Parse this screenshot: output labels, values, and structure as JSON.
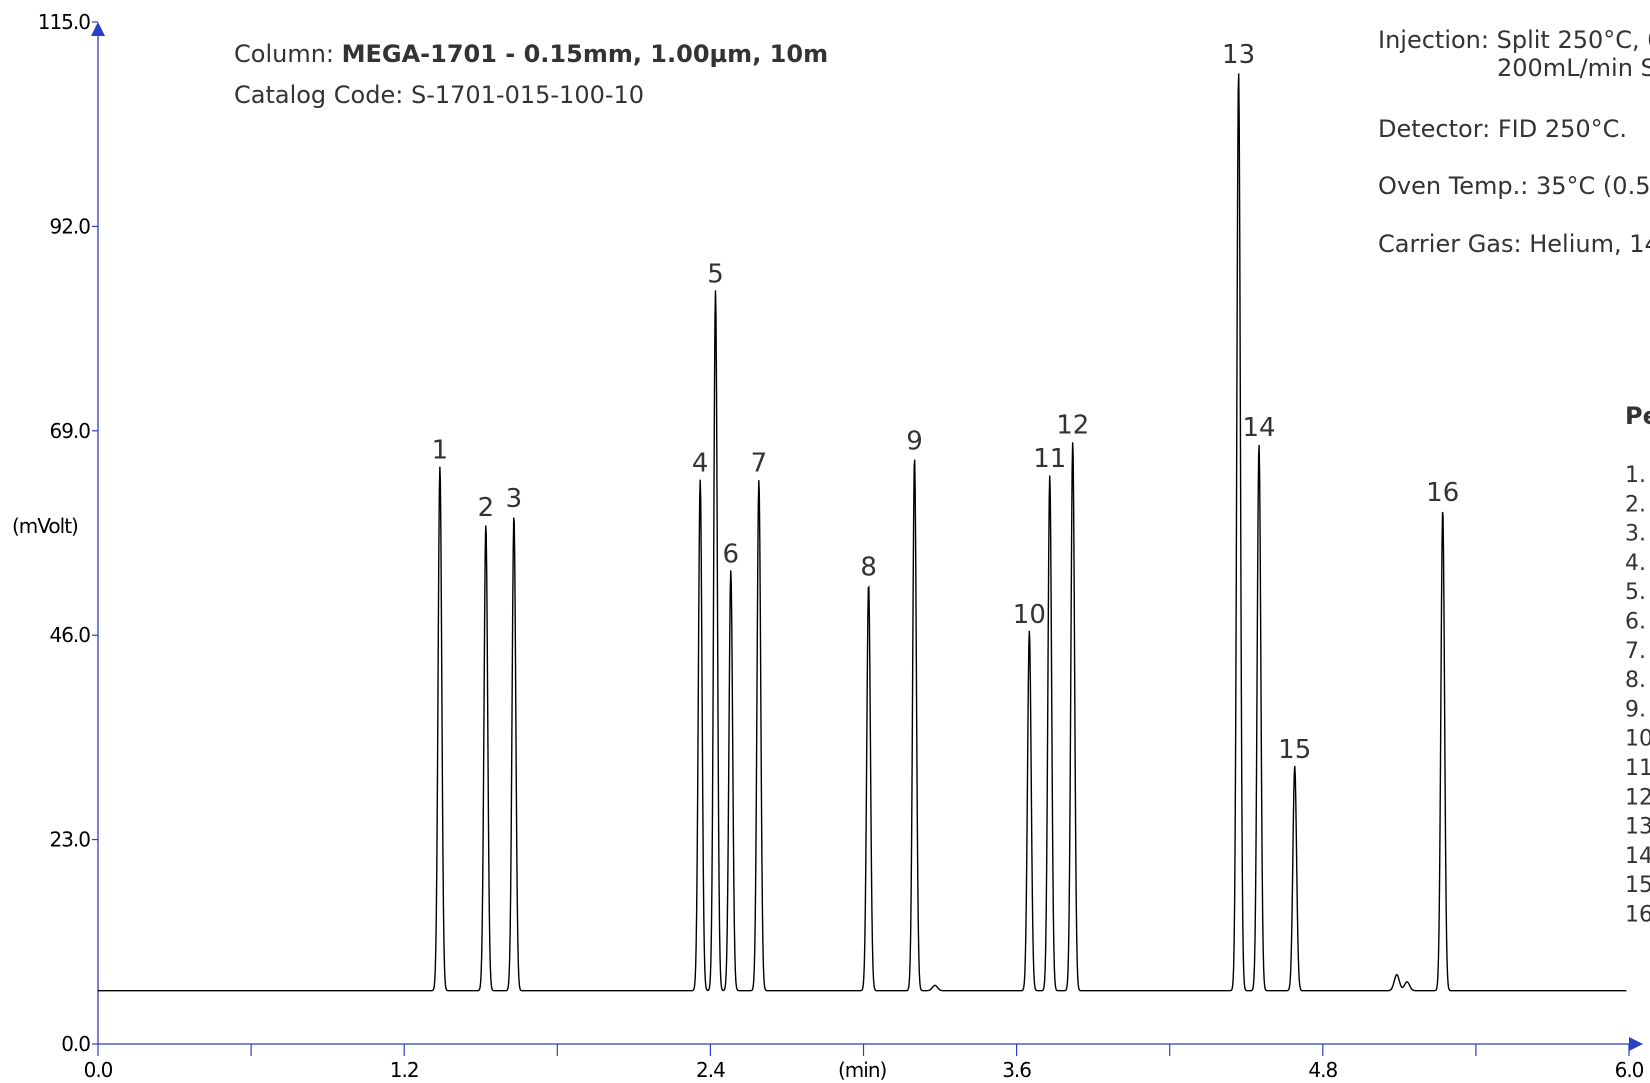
{
  "chart_data": {
    "type": "line",
    "title": "",
    "xlabel": "(min)",
    "ylabel": "(mVolt)",
    "xlim": [
      0.0,
      6.0
    ],
    "ylim": [
      0.0,
      115.0
    ],
    "x_ticks": [
      0.0,
      1.2,
      2.4,
      3.6,
      4.8,
      6.0
    ],
    "x_tick_labels": [
      "0.0",
      "1.2",
      "2.4",
      "3.6",
      "4.8",
      "6.0"
    ],
    "y_ticks": [
      0.0,
      23.0,
      46.0,
      69.0,
      92.0,
      115.0
    ],
    "y_tick_labels": [
      "0.0",
      "23.0",
      "46.0",
      "69.0",
      "92.0",
      "115.0"
    ],
    "baseline_mV": 6.0,
    "peaks": [
      {
        "label": "1",
        "rt": 1.34,
        "height": 65.0
      },
      {
        "label": "2",
        "rt": 1.52,
        "height": 58.5
      },
      {
        "label": "3",
        "rt": 1.63,
        "height": 59.5
      },
      {
        "label": "4",
        "rt": 2.36,
        "height": 63.5
      },
      {
        "label": "5",
        "rt": 2.42,
        "height": 84.8
      },
      {
        "label": "6",
        "rt": 2.48,
        "height": 53.3
      },
      {
        "label": "7",
        "rt": 2.59,
        "height": 63.5
      },
      {
        "label": "8",
        "rt": 3.02,
        "height": 51.8
      },
      {
        "label": "9",
        "rt": 3.2,
        "height": 66.0
      },
      {
        "label": "10",
        "rt": 3.65,
        "height": 46.5
      },
      {
        "label": "11",
        "rt": 3.73,
        "height": 64.0
      },
      {
        "label": "12",
        "rt": 3.82,
        "height": 67.8
      },
      {
        "label": "13",
        "rt": 4.47,
        "height": 109.5
      },
      {
        "label": "14",
        "rt": 4.55,
        "height": 67.5
      },
      {
        "label": "15",
        "rt": 4.69,
        "height": 31.3
      },
      {
        "label": "16",
        "rt": 5.27,
        "height": 60.2
      }
    ],
    "minor_bumps": [
      {
        "rt": 3.28,
        "height": 6.6
      },
      {
        "rt": 5.09,
        "height": 7.8
      },
      {
        "rt": 5.13,
        "height": 7.0
      }
    ],
    "annotations": {
      "column_label": "Column: ",
      "column_value": "MEGA-1701 - 0.15mm, 1.00µm, 10m",
      "catalog": "Catalog Code: S-1701-015-100-10",
      "injection_1": "Injection: Split 250°C, 0",
      "injection_2": "200mL/min S",
      "detector": "Detector: FID 250°C.",
      "oven": "Oven Temp.: 35°C (0.5",
      "carrier": "Carrier Gas: Helium, 14",
      "peaks_heading": "Pe",
      "list_numbers": [
        "1.",
        "2.",
        "3.",
        "4.",
        "5.",
        "6.",
        "7.",
        "8.",
        "9.",
        "10",
        "11",
        "12",
        "13",
        "14",
        "15",
        "16"
      ]
    },
    "colors": {
      "axis": "#2a3fc4",
      "trace": "#000000",
      "text": "#333333"
    }
  }
}
